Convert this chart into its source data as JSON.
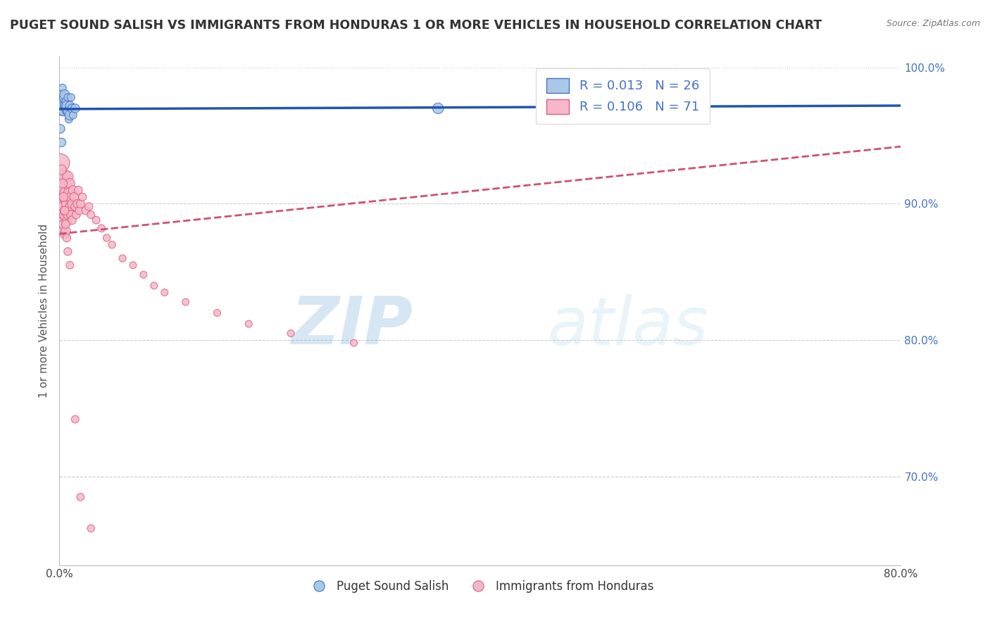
{
  "title": "PUGET SOUND SALISH VS IMMIGRANTS FROM HONDURAS 1 OR MORE VEHICLES IN HOUSEHOLD CORRELATION CHART",
  "source": "Source: ZipAtlas.com",
  "ylabel": "1 or more Vehicles in Household",
  "xlim": [
    0.0,
    0.8
  ],
  "ylim": [
    0.635,
    1.008
  ],
  "yticks": [
    0.7,
    0.8,
    0.9,
    1.0
  ],
  "yticklabels": [
    "70.0%",
    "80.0%",
    "90.0%",
    "100.0%"
  ],
  "blue_label": "Puget Sound Salish",
  "pink_label": "Immigrants from Honduras",
  "blue_R": 0.013,
  "blue_N": 26,
  "pink_R": 0.106,
  "pink_N": 71,
  "blue_color": "#a8c8e8",
  "pink_color": "#f4b8c8",
  "blue_edge_color": "#4472c4",
  "pink_edge_color": "#e06080",
  "blue_line_color": "#2155b0",
  "pink_line_color": "#d05070",
  "watermark_zip": "ZIP",
  "watermark_atlas": "atlas",
  "watermark_color": "#c5dff0",
  "blue_scatter_x": [
    0.001,
    0.002,
    0.002,
    0.003,
    0.003,
    0.004,
    0.004,
    0.005,
    0.005,
    0.006,
    0.006,
    0.007,
    0.007,
    0.008,
    0.008,
    0.009,
    0.01,
    0.01,
    0.011,
    0.012,
    0.013,
    0.015,
    0.001,
    0.002,
    0.36,
    0.55
  ],
  "blue_scatter_y": [
    0.974,
    0.968,
    0.98,
    0.972,
    0.985,
    0.968,
    0.978,
    0.972,
    0.98,
    0.97,
    0.975,
    0.968,
    0.972,
    0.978,
    0.968,
    0.962,
    0.972,
    0.965,
    0.978,
    0.97,
    0.965,
    0.97,
    0.955,
    0.945,
    0.97,
    0.965
  ],
  "blue_scatter_size": [
    120,
    80,
    100,
    80,
    60,
    100,
    80,
    80,
    100,
    80,
    60,
    80,
    100,
    60,
    80,
    60,
    80,
    100,
    60,
    80,
    60,
    80,
    80,
    80,
    120,
    120
  ],
  "pink_scatter_x": [
    0.001,
    0.001,
    0.001,
    0.002,
    0.002,
    0.002,
    0.003,
    0.003,
    0.003,
    0.003,
    0.004,
    0.004,
    0.004,
    0.005,
    0.005,
    0.005,
    0.005,
    0.006,
    0.006,
    0.006,
    0.007,
    0.007,
    0.007,
    0.008,
    0.008,
    0.008,
    0.009,
    0.009,
    0.01,
    0.01,
    0.011,
    0.011,
    0.012,
    0.012,
    0.013,
    0.014,
    0.015,
    0.016,
    0.017,
    0.018,
    0.019,
    0.02,
    0.022,
    0.025,
    0.028,
    0.03,
    0.035,
    0.04,
    0.045,
    0.05,
    0.06,
    0.07,
    0.08,
    0.09,
    0.1,
    0.12,
    0.15,
    0.18,
    0.22,
    0.28,
    0.002,
    0.003,
    0.004,
    0.005,
    0.006,
    0.007,
    0.008,
    0.01,
    0.015,
    0.02,
    0.03
  ],
  "pink_scatter_y": [
    0.93,
    0.91,
    0.895,
    0.915,
    0.9,
    0.888,
    0.92,
    0.905,
    0.893,
    0.88,
    0.912,
    0.898,
    0.885,
    0.92,
    0.905,
    0.892,
    0.878,
    0.908,
    0.895,
    0.88,
    0.915,
    0.9,
    0.887,
    0.92,
    0.905,
    0.892,
    0.908,
    0.895,
    0.915,
    0.898,
    0.905,
    0.892,
    0.9,
    0.888,
    0.91,
    0.905,
    0.898,
    0.892,
    0.9,
    0.91,
    0.895,
    0.9,
    0.905,
    0.895,
    0.898,
    0.892,
    0.888,
    0.882,
    0.875,
    0.87,
    0.86,
    0.855,
    0.848,
    0.84,
    0.835,
    0.828,
    0.82,
    0.812,
    0.805,
    0.798,
    0.925,
    0.915,
    0.905,
    0.895,
    0.885,
    0.875,
    0.865,
    0.855,
    0.742,
    0.685,
    0.662
  ],
  "pink_scatter_size": [
    350,
    200,
    150,
    250,
    180,
    120,
    200,
    160,
    120,
    90,
    160,
    130,
    100,
    180,
    140,
    110,
    90,
    150,
    120,
    95,
    130,
    110,
    90,
    120,
    100,
    85,
    110,
    90,
    100,
    85,
    95,
    80,
    90,
    75,
    85,
    80,
    75,
    70,
    75,
    70,
    65,
    70,
    65,
    68,
    65,
    62,
    60,
    58,
    55,
    55,
    52,
    50,
    50,
    50,
    50,
    50,
    50,
    50,
    50,
    50,
    100,
    90,
    80,
    75,
    72,
    68,
    65,
    60,
    60,
    58,
    55
  ],
  "blue_trend_x": [
    0.0,
    0.8
  ],
  "blue_trend_y": [
    0.9695,
    0.972
  ],
  "pink_trend_x": [
    0.0,
    0.8
  ],
  "pink_trend_y": [
    0.878,
    0.942
  ]
}
